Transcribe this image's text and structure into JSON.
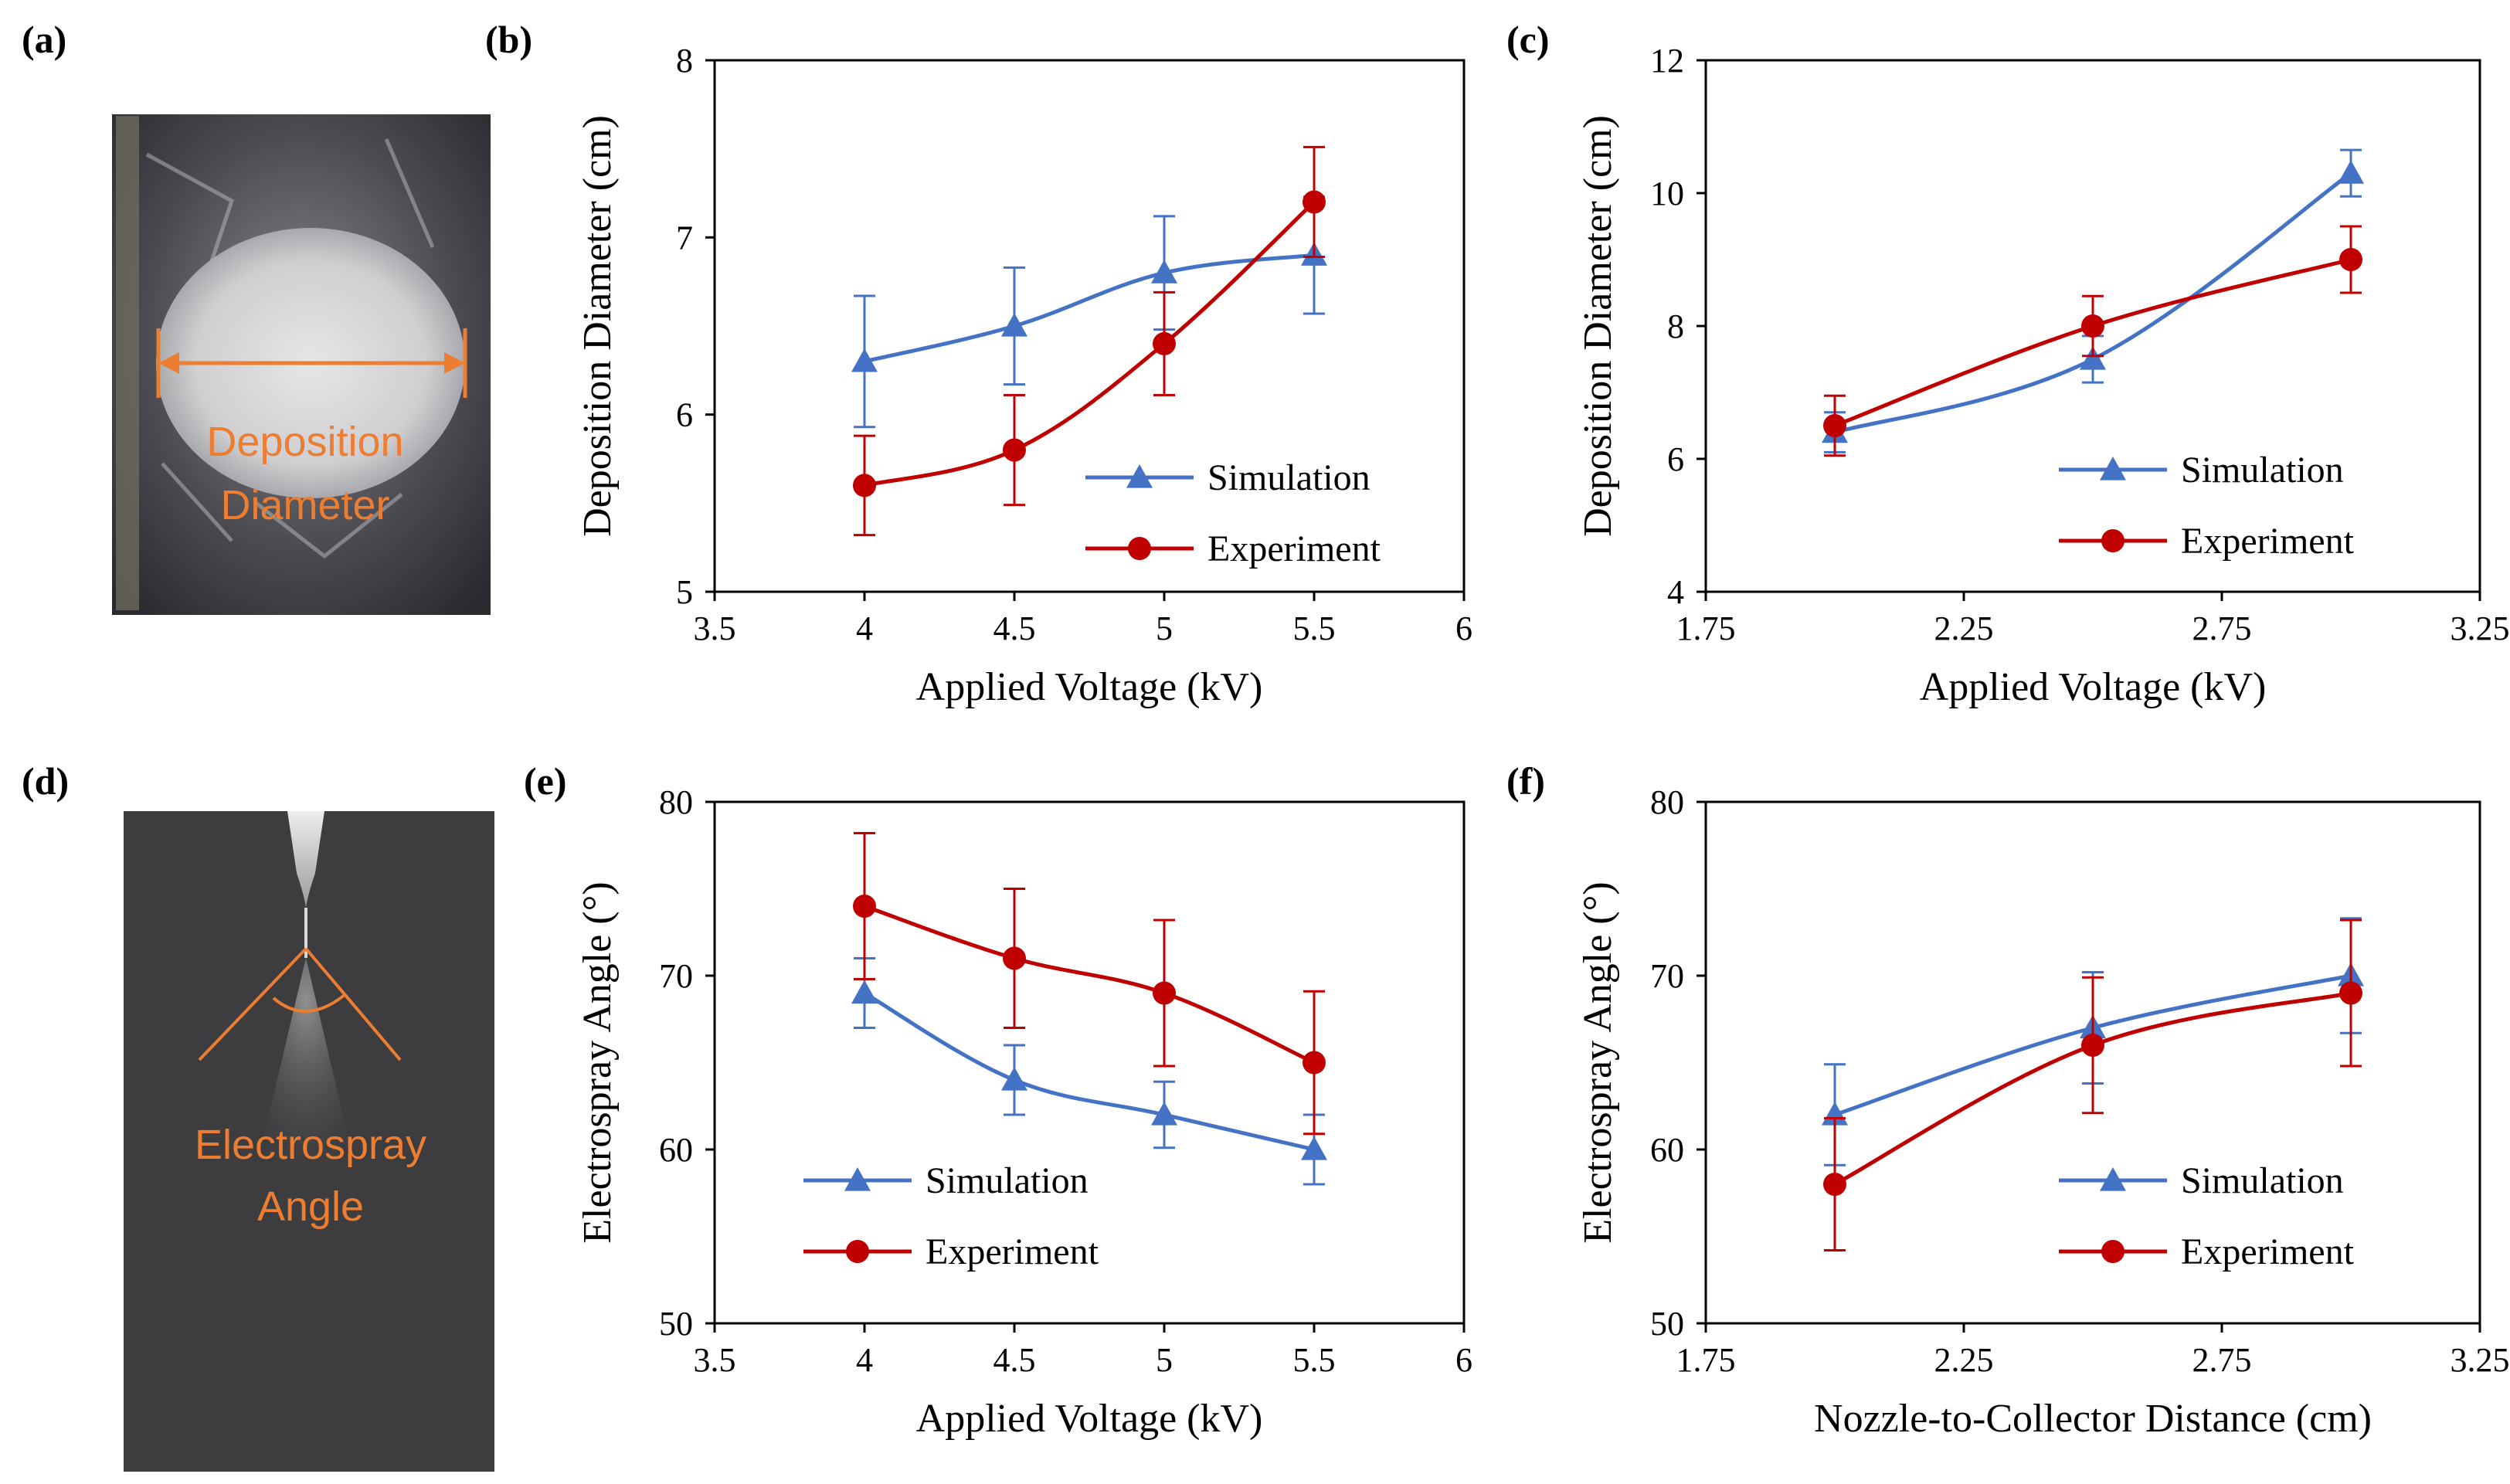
{
  "panel_labels": {
    "a": "(a)",
    "b": "(b)",
    "c": "(c)",
    "d": "(d)",
    "e": "(e)",
    "f": "(f)"
  },
  "photo_a": {
    "label_line1": "Deposition",
    "label_line2": "Diameter"
  },
  "photo_d": {
    "label_line1": "Electrospray",
    "label_line2": "Angle"
  },
  "colors": {
    "simulation": "#4472c4",
    "experiment": "#c00000",
    "annotation": "#ed7d31"
  },
  "chart_data": [
    {
      "id": "b",
      "type": "line",
      "xlabel": "Applied Voltage (kV)",
      "ylabel": "Deposition Diameter (cm)",
      "xlim": [
        3.5,
        6
      ],
      "ylim": [
        5,
        8
      ],
      "xticks": [
        3.5,
        4,
        4.5,
        5,
        5.5,
        6
      ],
      "xtick_labels": [
        "3.5",
        "4",
        "4.5",
        "5",
        "5.5",
        "6"
      ],
      "yticks": [
        5,
        6,
        7,
        8
      ],
      "ytick_labels": [
        "5",
        "6",
        "7",
        "8"
      ],
      "legend_pos": "middle-right",
      "series": [
        {
          "name": "Simulation",
          "marker": "triangle",
          "x": [
            4,
            4.5,
            5,
            5.5
          ],
          "y": [
            6.3,
            6.5,
            6.8,
            6.9
          ],
          "err": [
            0.37,
            0.33,
            0.32,
            0.33
          ]
        },
        {
          "name": "Experiment",
          "marker": "circle",
          "x": [
            4,
            4.5,
            5,
            5.5
          ],
          "y": [
            5.6,
            5.8,
            6.4,
            7.2
          ],
          "err": [
            0.28,
            0.31,
            0.29,
            0.31
          ]
        }
      ]
    },
    {
      "id": "c",
      "type": "line",
      "xlabel": "Applied Voltage (kV)",
      "ylabel": "Deposition Diameter (cm)",
      "xlim": [
        1.75,
        3.25
      ],
      "ylim": [
        4,
        12
      ],
      "xticks": [
        1.75,
        2.25,
        2.75,
        3.25
      ],
      "xtick_labels": [
        "1.75",
        "2.25",
        "2.75",
        "3.25"
      ],
      "yticks": [
        4,
        6,
        8,
        10,
        12
      ],
      "ytick_labels": [
        "4",
        "6",
        "8",
        "10",
        "12"
      ],
      "legend_pos": "middle-right",
      "series": [
        {
          "name": "Simulation",
          "marker": "triangle",
          "x": [
            2,
            2.5,
            3
          ],
          "y": [
            6.4,
            7.5,
            10.3
          ],
          "err": [
            0.3,
            0.35,
            0.35
          ]
        },
        {
          "name": "Experiment",
          "marker": "circle",
          "x": [
            2,
            2.5,
            3
          ],
          "y": [
            6.5,
            8.0,
            9.0
          ],
          "err": [
            0.45,
            0.45,
            0.5
          ]
        }
      ]
    },
    {
      "id": "e",
      "type": "line",
      "xlabel": "Applied Voltage (kV)",
      "ylabel": "Electrospray Angle (°)",
      "xlim": [
        3.5,
        6
      ],
      "ylim": [
        50,
        80
      ],
      "xticks": [
        3.5,
        4,
        4.5,
        5,
        5.5,
        6
      ],
      "xtick_labels": [
        "3.5",
        "4",
        "4.5",
        "5",
        "5.5",
        "6"
      ],
      "yticks": [
        50,
        60,
        70,
        80
      ],
      "ytick_labels": [
        "50",
        "60",
        "70",
        "80"
      ],
      "legend_pos": "bottom-left",
      "series": [
        {
          "name": "Simulation",
          "marker": "triangle",
          "x": [
            4,
            4.5,
            5,
            5.5
          ],
          "y": [
            69,
            64,
            62,
            60
          ],
          "err": [
            2.0,
            2.0,
            1.9,
            2.0
          ]
        },
        {
          "name": "Experiment",
          "marker": "circle",
          "x": [
            4,
            4.5,
            5,
            5.5
          ],
          "y": [
            74,
            71,
            69,
            65
          ],
          "err": [
            4.2,
            4.0,
            4.2,
            4.1
          ]
        }
      ]
    },
    {
      "id": "f",
      "type": "line",
      "xlabel": "Nozzle-to-Collector Distance (cm)",
      "ylabel": "Electrospray Angle (°)",
      "xlim": [
        1.75,
        3.25
      ],
      "ylim": [
        50,
        80
      ],
      "xticks": [
        1.75,
        2.25,
        2.75,
        3.25
      ],
      "xtick_labels": [
        "1.75",
        "2.25",
        "2.75",
        "3.25"
      ],
      "yticks": [
        50,
        60,
        70,
        80
      ],
      "ytick_labels": [
        "50",
        "60",
        "70",
        "80"
      ],
      "legend_pos": "bottom-right",
      "series": [
        {
          "name": "Simulation",
          "marker": "triangle",
          "x": [
            2,
            2.5,
            3
          ],
          "y": [
            62,
            67,
            70
          ],
          "err": [
            2.9,
            3.2,
            3.3
          ]
        },
        {
          "name": "Experiment",
          "marker": "circle",
          "x": [
            2,
            2.5,
            3
          ],
          "y": [
            58,
            66,
            69
          ],
          "err": [
            3.8,
            3.9,
            4.2
          ]
        }
      ]
    }
  ]
}
